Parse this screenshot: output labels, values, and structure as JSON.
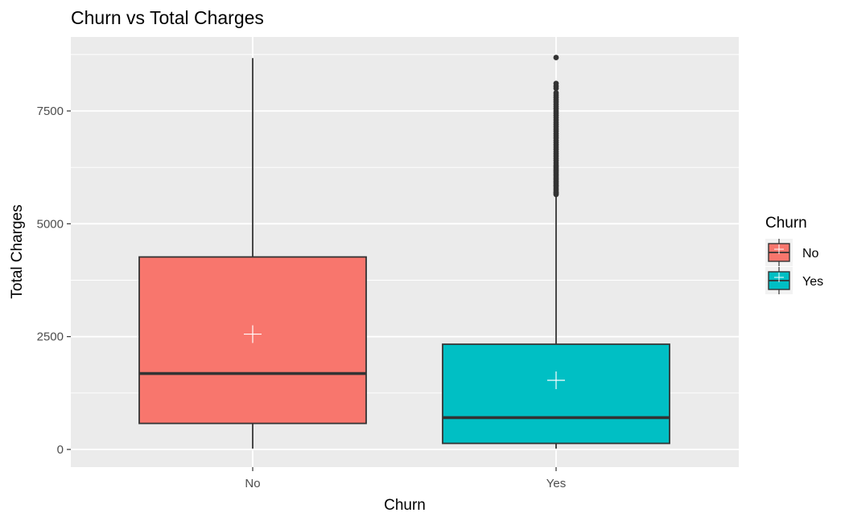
{
  "chart_data": {
    "type": "boxplot",
    "title": "Churn vs Total Charges",
    "xlabel": "Churn",
    "ylabel": "Total Charges",
    "categories": [
      "No",
      "Yes"
    ],
    "ylim": [
      -400,
      8900
    ],
    "yticks": [
      0,
      2500,
      5000,
      7500
    ],
    "grid": true,
    "legend": {
      "title": "Churn",
      "position": "right",
      "entries": [
        "No",
        "Yes"
      ]
    },
    "colors": {
      "No": "#F8766D",
      "Yes": "#00BFC4",
      "panel": "#EBEBEB",
      "grid": "#FFFFFF",
      "box_line": "#333333",
      "mean_marker": "#FFFFFF"
    },
    "boxes": [
      {
        "category": "No",
        "min": 18.8,
        "q1": 577,
        "median": 1683,
        "q3": 4265,
        "max": 8672,
        "mean": 2555,
        "outliers": []
      },
      {
        "category": "Yes",
        "min": 18.9,
        "q1": 134,
        "median": 704,
        "q3": 2331,
        "max": 5620,
        "mean": 1532,
        "outliers": [
          5650,
          5680,
          5710,
          5750,
          5790,
          5830,
          5860,
          5900,
          5940,
          5980,
          6020,
          6060,
          6100,
          6140,
          6180,
          6220,
          6260,
          6300,
          6350,
          6400,
          6450,
          6500,
          6550,
          6600,
          6650,
          6700,
          6750,
          6800,
          6850,
          6900,
          6950,
          7000,
          7050,
          7100,
          7150,
          7200,
          7250,
          7300,
          7350,
          7400,
          7450,
          7500,
          7550,
          7600,
          7650,
          7700,
          7750,
          7800,
          7850,
          7900,
          8000,
          8050,
          8110,
          8684
        ]
      }
    ]
  }
}
